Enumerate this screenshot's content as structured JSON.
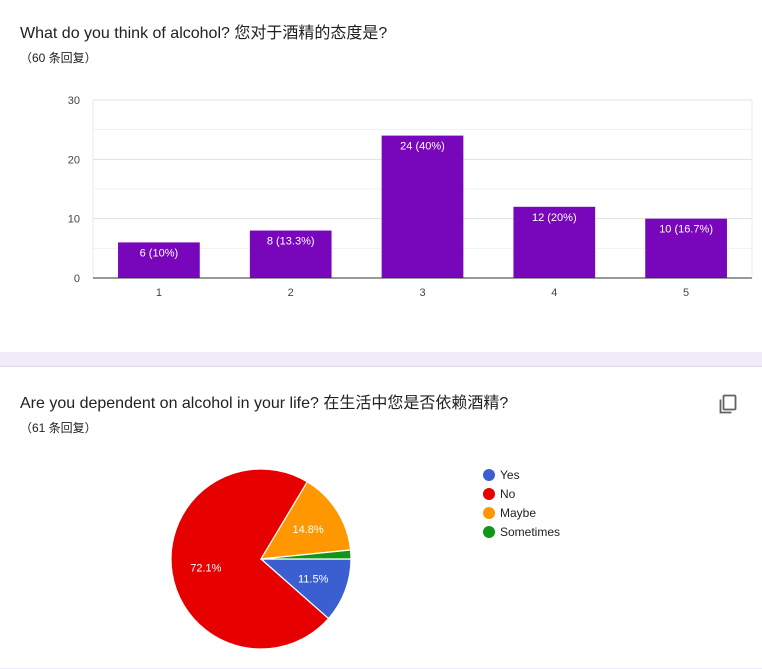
{
  "q1": {
    "title": "What do you think of alcohol? 您对于酒精的态度是?",
    "responses": "（60 条回复）"
  },
  "q2": {
    "title": "Are you dependent on alcohol in your life? 在生活中您是否依赖酒精?",
    "responses": "（61 条回复）"
  },
  "icons": {
    "copy": "copy-icon"
  },
  "colors": {
    "bar": "#7806bb",
    "yes": "#3b5fd1",
    "no": "#e60000",
    "maybe": "#ff9800",
    "sometimes": "#109618"
  },
  "chart_data": [
    {
      "type": "bar",
      "categories": [
        "1",
        "2",
        "3",
        "4",
        "5"
      ],
      "values": [
        6,
        8,
        24,
        12,
        10
      ],
      "labels": [
        "6 (10%)",
        "8 (13.3%)",
        "24 (40%)",
        "12 (20%)",
        "10 (16.7%)"
      ],
      "ylim": [
        0,
        30
      ],
      "yticks": [
        0,
        10,
        20,
        30
      ],
      "grid": true,
      "legend": "none"
    },
    {
      "type": "pie",
      "categories": [
        "Yes",
        "No",
        "Maybe",
        "Sometimes"
      ],
      "values": [
        11.5,
        72.1,
        14.8,
        1.6
      ],
      "labels": [
        "11.5%",
        "72.1%",
        "14.8%",
        ""
      ],
      "legend": "right"
    }
  ]
}
